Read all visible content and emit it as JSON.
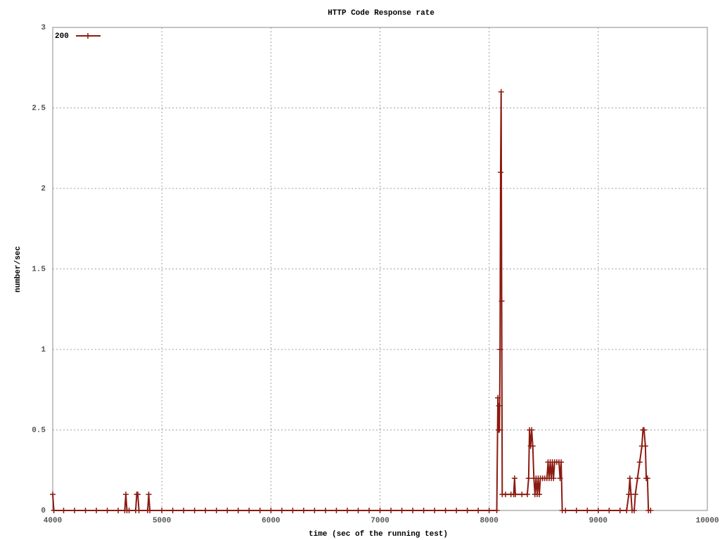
{
  "chart_data": {
    "type": "line",
    "title": "HTTP Code Response rate",
    "x_label": "time (sec of the running test)",
    "y_label": "number/sec",
    "xlim": [
      4000,
      10000
    ],
    "xticks": [
      4000,
      5000,
      6000,
      7000,
      8000,
      9000,
      10000
    ],
    "ylim": [
      0,
      3
    ],
    "yticks": [
      0,
      0.5,
      1,
      1.5,
      2,
      2.5,
      3
    ],
    "grid": true,
    "legend": "top-left",
    "x": [
      4000,
      4010,
      4100,
      4200,
      4300,
      4400,
      4500,
      4600,
      4660,
      4670,
      4680,
      4700,
      4760,
      4770,
      4780,
      4790,
      4870,
      4880,
      4890,
      5000,
      5100,
      5200,
      5300,
      5400,
      5500,
      5600,
      5700,
      5800,
      5900,
      6000,
      6100,
      6200,
      6300,
      6400,
      6500,
      6600,
      6700,
      6800,
      6900,
      7000,
      7100,
      7200,
      7300,
      7400,
      7500,
      7600,
      7700,
      7800,
      7900,
      8000,
      8070,
      8080,
      8085,
      8090,
      8095,
      8100,
      8105,
      8110,
      8115,
      8120,
      8150,
      8200,
      8225,
      8233,
      8240,
      8300,
      8350,
      8362,
      8370,
      8380,
      8390,
      8400,
      8410,
      8420,
      8430,
      8440,
      8450,
      8460,
      8470,
      8490,
      8510,
      8530,
      8540,
      8550,
      8560,
      8570,
      8580,
      8590,
      8600,
      8620,
      8640,
      8650,
      8660,
      8670,
      8700,
      8800,
      8900,
      9000,
      9100,
      9200,
      9260,
      9280,
      9290,
      9300,
      9310,
      9330,
      9340,
      9360,
      9380,
      9400,
      9410,
      9420,
      9432,
      9440,
      9451,
      9460,
      9480
    ],
    "series": [
      {
        "name": "200",
        "color": "#8b1a10",
        "values": [
          0.1,
          0,
          0,
          0,
          0,
          0,
          0,
          0,
          0,
          0.1,
          0,
          0,
          0,
          0.1,
          0.1,
          0,
          0,
          0.1,
          0,
          0,
          0,
          0,
          0,
          0,
          0,
          0,
          0,
          0,
          0,
          0,
          0,
          0,
          0,
          0,
          0,
          0,
          0,
          0,
          0,
          0,
          0,
          0,
          0,
          0,
          0,
          0,
          0,
          0,
          0,
          0,
          0,
          0.7,
          0.5,
          0.65,
          0.5,
          1,
          2.1,
          2.6,
          1.3,
          0.1,
          0.1,
          0.1,
          0.1,
          0.2,
          0.1,
          0.1,
          0.1,
          0.2,
          0.5,
          0.4,
          0.5,
          0.4,
          0.2,
          0.1,
          0.2,
          0.1,
          0.2,
          0.1,
          0.2,
          0.2,
          0.2,
          0.2,
          0.3,
          0.2,
          0.3,
          0.2,
          0.3,
          0.2,
          0.3,
          0.3,
          0.3,
          0.2,
          0.3,
          0,
          0,
          0,
          0,
          0,
          0,
          0,
          0,
          0.1,
          0.2,
          0.1,
          0,
          0,
          0.1,
          0.2,
          0.3,
          0.4,
          0.5,
          0.5,
          0.4,
          0.2,
          0.2,
          0,
          0
        ]
      }
    ]
  }
}
